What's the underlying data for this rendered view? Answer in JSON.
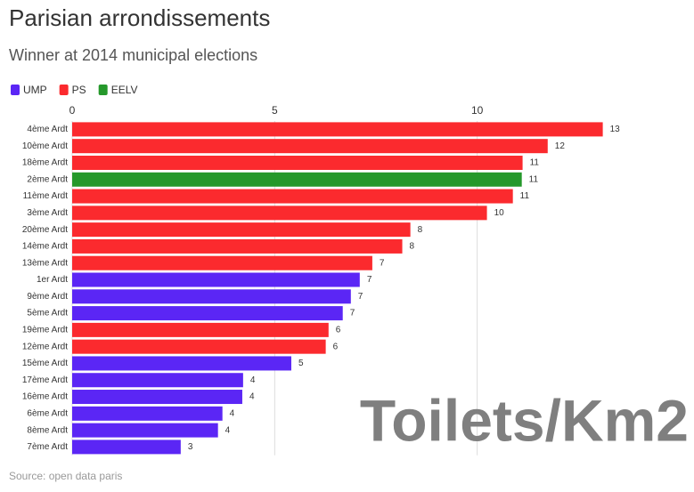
{
  "chart_data": {
    "type": "bar",
    "title": "Parisian arrondissements",
    "subtitle": "Winner at 2014 municipal elections",
    "annotation": "Toilets/Km2",
    "source": "Source: open data paris",
    "legend": [
      {
        "name": "UMP",
        "color": "#5b26f5"
      },
      {
        "name": "PS",
        "color": "#fb2a2e"
      },
      {
        "name": "EELV",
        "color": "#25982b"
      }
    ],
    "categories": [
      "4ème Ardt",
      "10ème Ardt",
      "18ème Ardt",
      "2ème Ardt",
      "11ème Ardt",
      "3ème Ardt",
      "20ème Ardt",
      "14ème Ardt",
      "13ème Ardt",
      "1er Ardt",
      "9ème Ardt",
      "5ème Ardt",
      "19ème Ardt",
      "12ème Ardt",
      "15ème Ardt",
      "17ème Ardt",
      "16ème Ardt",
      "6ème Ardt",
      "8ème Ardt",
      "7ème Ardt"
    ],
    "parties": [
      "PS",
      "PS",
      "PS",
      "EELV",
      "PS",
      "PS",
      "PS",
      "PS",
      "PS",
      "UMP",
      "UMP",
      "UMP",
      "PS",
      "PS",
      "UMP",
      "UMP",
      "UMP",
      "UMP",
      "UMP",
      "UMP"
    ],
    "values": [
      13.1,
      11.74,
      11.12,
      11.1,
      10.88,
      10.24,
      8.35,
      8.15,
      7.41,
      7.1,
      6.88,
      6.68,
      6.33,
      6.26,
      5.41,
      4.22,
      4.2,
      3.71,
      3.6,
      2.68
    ],
    "value_labels": [
      "13",
      "12",
      "11",
      "11",
      "11",
      "10",
      "8",
      "8",
      "7",
      "7",
      "7",
      "7",
      "6",
      "6",
      "5",
      "4",
      "4",
      "4",
      "4",
      "3"
    ],
    "xlim": [
      0,
      15
    ],
    "xticks": [
      0,
      5,
      10
    ],
    "grid": true
  }
}
